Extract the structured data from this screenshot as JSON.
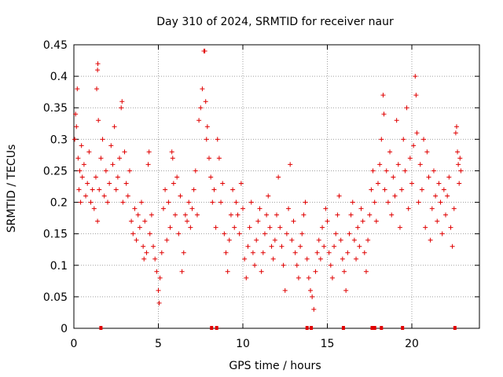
{
  "chart_data": {
    "type": "scatter",
    "title": "Day 310 of 2024, SRMTID for receiver naur",
    "xlabel": "GPS time / hours",
    "ylabel": "SRMTID / TECUs",
    "xlim": [
      0,
      24
    ],
    "ylim": [
      0,
      0.45
    ],
    "x_ticks": [
      0,
      5,
      10,
      15,
      20
    ],
    "y_ticks": [
      0,
      0.05,
      0.1,
      0.15,
      0.2,
      0.25,
      0.3,
      0.35,
      0.4,
      0.45
    ],
    "x_tick_labels": [
      "0",
      "5",
      "10",
      "15",
      "20"
    ],
    "y_tick_labels": [
      "0",
      "0.05",
      "0.1",
      "0.15",
      "0.2",
      "0.25",
      "0.3",
      "0.35",
      "0.4",
      "0.45"
    ],
    "grid": true,
    "marker": "+",
    "color": "#e00000",
    "series": [
      {
        "name": "SRMTID",
        "points": [
          [
            0.05,
            0.3
          ],
          [
            0.1,
            0.34
          ],
          [
            0.15,
            0.32
          ],
          [
            0.2,
            0.38
          ],
          [
            0.25,
            0.27
          ],
          [
            0.3,
            0.22
          ],
          [
            0.35,
            0.25
          ],
          [
            0.4,
            0.2
          ],
          [
            0.45,
            0.29
          ],
          [
            0.5,
            0.24
          ],
          [
            0.6,
            0.26
          ],
          [
            0.7,
            0.21
          ],
          [
            0.8,
            0.23
          ],
          [
            0.9,
            0.28
          ],
          [
            1.0,
            0.2
          ],
          [
            1.1,
            0.22
          ],
          [
            1.2,
            0.19
          ],
          [
            1.3,
            0.24
          ],
          [
            1.4,
            0.17
          ],
          [
            1.5,
            0.22
          ],
          [
            1.35,
            0.38
          ],
          [
            1.4,
            0.41
          ],
          [
            1.42,
            0.42
          ],
          [
            1.45,
            0.33
          ],
          [
            1.6,
            0.27
          ],
          [
            1.7,
            0.3
          ],
          [
            1.8,
            0.21
          ],
          [
            1.9,
            0.25
          ],
          [
            2.0,
            0.2
          ],
          [
            2.1,
            0.23
          ],
          [
            2.2,
            0.29
          ],
          [
            2.3,
            0.26
          ],
          [
            2.4,
            0.32
          ],
          [
            2.5,
            0.22
          ],
          [
            2.6,
            0.24
          ],
          [
            2.7,
            0.27
          ],
          [
            2.8,
            0.35
          ],
          [
            2.85,
            0.36
          ],
          [
            2.9,
            0.2
          ],
          [
            3.0,
            0.28
          ],
          [
            3.1,
            0.23
          ],
          [
            3.2,
            0.21
          ],
          [
            3.3,
            0.25
          ],
          [
            3.4,
            0.17
          ],
          [
            3.5,
            0.15
          ],
          [
            3.6,
            0.19
          ],
          [
            3.7,
            0.14
          ],
          [
            3.8,
            0.18
          ],
          [
            3.9,
            0.16
          ],
          [
            4.0,
            0.2
          ],
          [
            4.1,
            0.13
          ],
          [
            4.15,
            0.11
          ],
          [
            4.2,
            0.17
          ],
          [
            4.3,
            0.12
          ],
          [
            4.4,
            0.26
          ],
          [
            4.45,
            0.28
          ],
          [
            4.5,
            0.15
          ],
          [
            4.6,
            0.18
          ],
          [
            4.7,
            0.13
          ],
          [
            4.8,
            0.11
          ],
          [
            4.9,
            0.09
          ],
          [
            5.0,
            0.06
          ],
          [
            5.05,
            0.04
          ],
          [
            5.1,
            0.08
          ],
          [
            5.2,
            0.12
          ],
          [
            5.3,
            0.19
          ],
          [
            5.4,
            0.22
          ],
          [
            5.5,
            0.14
          ],
          [
            5.6,
            0.2
          ],
          [
            5.7,
            0.16
          ],
          [
            5.8,
            0.28
          ],
          [
            5.85,
            0.27
          ],
          [
            5.9,
            0.23
          ],
          [
            6.0,
            0.18
          ],
          [
            6.1,
            0.24
          ],
          [
            6.2,
            0.15
          ],
          [
            6.3,
            0.21
          ],
          [
            6.4,
            0.09
          ],
          [
            6.5,
            0.12
          ],
          [
            6.6,
            0.18
          ],
          [
            6.7,
            0.17
          ],
          [
            6.8,
            0.2
          ],
          [
            6.9,
            0.16
          ],
          [
            7.0,
            0.19
          ],
          [
            7.1,
            0.22
          ],
          [
            7.2,
            0.25
          ],
          [
            7.3,
            0.18
          ],
          [
            7.4,
            0.33
          ],
          [
            7.5,
            0.35
          ],
          [
            7.6,
            0.38
          ],
          [
            7.7,
            0.44
          ],
          [
            7.75,
            0.44
          ],
          [
            7.8,
            0.36
          ],
          [
            7.85,
            0.3
          ],
          [
            7.9,
            0.32
          ],
          [
            8.0,
            0.27
          ],
          [
            8.1,
            0.24
          ],
          [
            8.2,
            0.2
          ],
          [
            8.3,
            0.22
          ],
          [
            8.4,
            0.16
          ],
          [
            8.5,
            0.3
          ],
          [
            8.6,
            0.27
          ],
          [
            8.7,
            0.2
          ],
          [
            8.8,
            0.23
          ],
          [
            8.9,
            0.15
          ],
          [
            9.0,
            0.12
          ],
          [
            9.1,
            0.09
          ],
          [
            9.2,
            0.14
          ],
          [
            9.3,
            0.18
          ],
          [
            9.4,
            0.22
          ],
          [
            9.5,
            0.16
          ],
          [
            9.6,
            0.2
          ],
          [
            9.7,
            0.18
          ],
          [
            9.8,
            0.15
          ],
          [
            9.9,
            0.23
          ],
          [
            10.0,
            0.19
          ],
          [
            10.1,
            0.11
          ],
          [
            10.2,
            0.08
          ],
          [
            10.3,
            0.13
          ],
          [
            10.4,
            0.16
          ],
          [
            10.5,
            0.2
          ],
          [
            10.6,
            0.12
          ],
          [
            10.7,
            0.1
          ],
          [
            10.8,
            0.14
          ],
          [
            10.9,
            0.17
          ],
          [
            11.0,
            0.19
          ],
          [
            11.1,
            0.09
          ],
          [
            11.2,
            0.12
          ],
          [
            11.3,
            0.15
          ],
          [
            11.4,
            0.18
          ],
          [
            11.5,
            0.21
          ],
          [
            11.6,
            0.16
          ],
          [
            11.7,
            0.13
          ],
          [
            11.8,
            0.11
          ],
          [
            11.9,
            0.14
          ],
          [
            12.0,
            0.18
          ],
          [
            12.1,
            0.24
          ],
          [
            12.2,
            0.16
          ],
          [
            12.3,
            0.13
          ],
          [
            12.4,
            0.1
          ],
          [
            12.5,
            0.06
          ],
          [
            12.6,
            0.15
          ],
          [
            12.7,
            0.19
          ],
          [
            12.8,
            0.26
          ],
          [
            12.9,
            0.14
          ],
          [
            13.0,
            0.17
          ],
          [
            13.1,
            0.12
          ],
          [
            13.2,
            0.1
          ],
          [
            13.3,
            0.08
          ],
          [
            13.4,
            0.13
          ],
          [
            13.5,
            0.15
          ],
          [
            13.6,
            0.18
          ],
          [
            13.7,
            0.2
          ],
          [
            13.8,
            0.11
          ],
          [
            13.9,
            0.08
          ],
          [
            14.0,
            0.06
          ],
          [
            14.1,
            0.05
          ],
          [
            14.2,
            0.03
          ],
          [
            14.3,
            0.09
          ],
          [
            14.4,
            0.12
          ],
          [
            14.5,
            0.14
          ],
          [
            14.6,
            0.11
          ],
          [
            14.7,
            0.16
          ],
          [
            14.8,
            0.13
          ],
          [
            14.9,
            0.19
          ],
          [
            15.0,
            0.17
          ],
          [
            15.1,
            0.12
          ],
          [
            15.2,
            0.1
          ],
          [
            15.3,
            0.08
          ],
          [
            15.4,
            0.13
          ],
          [
            15.5,
            0.15
          ],
          [
            15.6,
            0.18
          ],
          [
            15.7,
            0.21
          ],
          [
            15.8,
            0.14
          ],
          [
            15.9,
            0.11
          ],
          [
            16.0,
            0.09
          ],
          [
            16.1,
            0.06
          ],
          [
            16.2,
            0.12
          ],
          [
            16.3,
            0.15
          ],
          [
            16.4,
            0.18
          ],
          [
            16.5,
            0.2
          ],
          [
            16.6,
            0.14
          ],
          [
            16.7,
            0.11
          ],
          [
            16.8,
            0.16
          ],
          [
            16.9,
            0.13
          ],
          [
            17.0,
            0.19
          ],
          [
            17.1,
            0.17
          ],
          [
            17.2,
            0.12
          ],
          [
            17.3,
            0.09
          ],
          [
            17.4,
            0.14
          ],
          [
            17.5,
            0.18
          ],
          [
            17.6,
            0.22
          ],
          [
            17.7,
            0.25
          ],
          [
            17.8,
            0.2
          ],
          [
            17.9,
            0.17
          ],
          [
            18.0,
            0.23
          ],
          [
            18.1,
            0.26
          ],
          [
            18.2,
            0.3
          ],
          [
            18.3,
            0.37
          ],
          [
            18.35,
            0.34
          ],
          [
            18.4,
            0.22
          ],
          [
            18.5,
            0.25
          ],
          [
            18.6,
            0.2
          ],
          [
            18.7,
            0.28
          ],
          [
            18.8,
            0.18
          ],
          [
            18.9,
            0.24
          ],
          [
            19.0,
            0.21
          ],
          [
            19.1,
            0.33
          ],
          [
            19.2,
            0.26
          ],
          [
            19.3,
            0.16
          ],
          [
            19.4,
            0.22
          ],
          [
            19.5,
            0.3
          ],
          [
            19.6,
            0.25
          ],
          [
            19.7,
            0.35
          ],
          [
            19.8,
            0.19
          ],
          [
            19.9,
            0.27
          ],
          [
            20.0,
            0.23
          ],
          [
            20.1,
            0.29
          ],
          [
            20.2,
            0.4
          ],
          [
            20.25,
            0.37
          ],
          [
            20.3,
            0.31
          ],
          [
            20.4,
            0.2
          ],
          [
            20.5,
            0.26
          ],
          [
            20.6,
            0.22
          ],
          [
            20.7,
            0.3
          ],
          [
            20.8,
            0.16
          ],
          [
            20.9,
            0.28
          ],
          [
            21.0,
            0.24
          ],
          [
            21.1,
            0.14
          ],
          [
            21.2,
            0.19
          ],
          [
            21.3,
            0.25
          ],
          [
            21.4,
            0.21
          ],
          [
            21.5,
            0.17
          ],
          [
            21.6,
            0.23
          ],
          [
            21.7,
            0.2
          ],
          [
            21.8,
            0.15
          ],
          [
            21.9,
            0.22
          ],
          [
            22.0,
            0.18
          ],
          [
            22.1,
            0.21
          ],
          [
            22.2,
            0.24
          ],
          [
            22.3,
            0.16
          ],
          [
            22.4,
            0.13
          ],
          [
            22.5,
            0.19
          ],
          [
            22.6,
            0.31
          ],
          [
            22.65,
            0.32
          ],
          [
            22.7,
            0.28
          ],
          [
            22.75,
            0.26
          ],
          [
            22.8,
            0.23
          ],
          [
            22.85,
            0.27
          ],
          [
            22.9,
            0.25
          ]
        ]
      }
    ],
    "zero_markers_x": [
      1.6,
      8.15,
      8.45,
      13.8,
      14.05,
      15.95,
      17.65,
      17.8,
      18.2,
      19.45,
      22.55
    ]
  }
}
